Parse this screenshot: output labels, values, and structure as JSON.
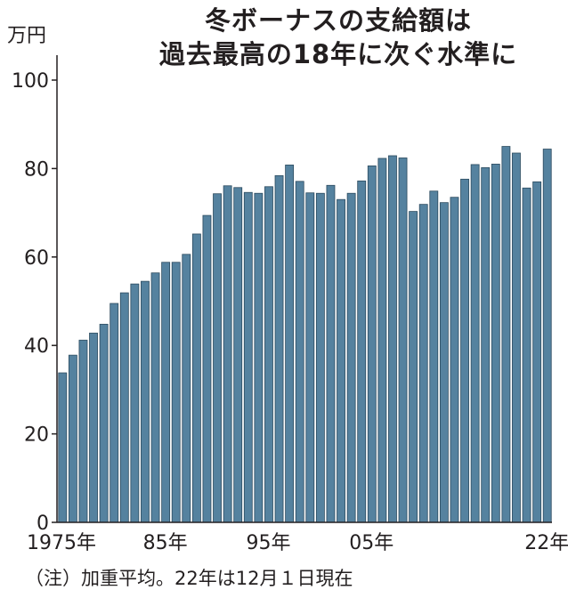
{
  "chart_data": {
    "type": "bar",
    "title_lines": [
      "冬ボーナスの支給額は",
      "過去最高の18年に次ぐ水準に"
    ],
    "ylabel": "万円",
    "ylim": [
      0,
      100
    ],
    "yticks": [
      0,
      20,
      40,
      60,
      80,
      100
    ],
    "x": [
      1975,
      1976,
      1977,
      1978,
      1979,
      1980,
      1981,
      1982,
      1983,
      1984,
      1985,
      1986,
      1987,
      1988,
      1989,
      1990,
      1991,
      1992,
      1993,
      1994,
      1995,
      1996,
      1997,
      1998,
      1999,
      2000,
      2001,
      2002,
      2003,
      2004,
      2005,
      2006,
      2007,
      2008,
      2009,
      2010,
      2011,
      2012,
      2013,
      2014,
      2015,
      2016,
      2017,
      2018,
      2019,
      2020,
      2021,
      2022
    ],
    "values": [
      33.8,
      37.8,
      41.2,
      42.8,
      44.8,
      49.5,
      51.9,
      53.9,
      54.5,
      56.4,
      58.8,
      58.8,
      60.6,
      65.2,
      69.4,
      74.3,
      76.1,
      75.7,
      74.6,
      74.4,
      75.9,
      78.4,
      80.8,
      77.1,
      74.5,
      74.4,
      76.2,
      73.0,
      74.4,
      77.2,
      80.6,
      82.3,
      82.9,
      82.4,
      70.3,
      71.9,
      74.9,
      72.3,
      73.5,
      77.6,
      80.9,
      80.2,
      81.0,
      85.0,
      83.5,
      75.6,
      77.0,
      84.4
    ],
    "xtick_labels": [
      {
        "year": 1975,
        "label": "1975年"
      },
      {
        "year": 1985,
        "label": "85年"
      },
      {
        "year": 1995,
        "label": "95年"
      },
      {
        "year": 2005,
        "label": "05年"
      },
      {
        "year": 2022,
        "label": "22年"
      }
    ],
    "footnote": "（注）加重平均。22年は12月１日現在",
    "bar_color": "#55829f",
    "bar_stroke": "#2b4a5e",
    "grid": false
  }
}
